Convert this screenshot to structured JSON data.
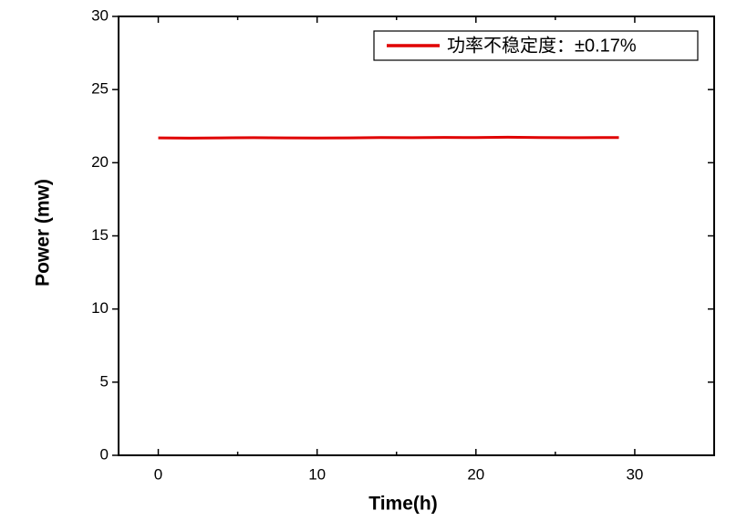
{
  "chart_data": {
    "type": "line",
    "x_label": "Time(h)",
    "y_label": "Power (mw)",
    "x": [
      0,
      2,
      4,
      6,
      8,
      10,
      12,
      14,
      16,
      18,
      20,
      22,
      24,
      26,
      28,
      29
    ],
    "series": [
      {
        "name": "功率不稳定度：±0.17%",
        "color": "#e00000",
        "values": [
          21.7,
          21.68,
          21.7,
          21.71,
          21.7,
          21.69,
          21.7,
          21.72,
          21.71,
          21.73,
          21.72,
          21.74,
          21.72,
          21.71,
          21.72,
          21.72
        ]
      }
    ],
    "xlim": [
      -2.5,
      35
    ],
    "xticks": [
      0,
      10,
      20,
      30
    ],
    "xticks_minor": [
      5,
      15,
      25
    ],
    "ylim": [
      0,
      30
    ],
    "yticks": [
      0,
      5,
      10,
      15,
      20,
      25,
      30
    ],
    "legend": "upper right"
  }
}
